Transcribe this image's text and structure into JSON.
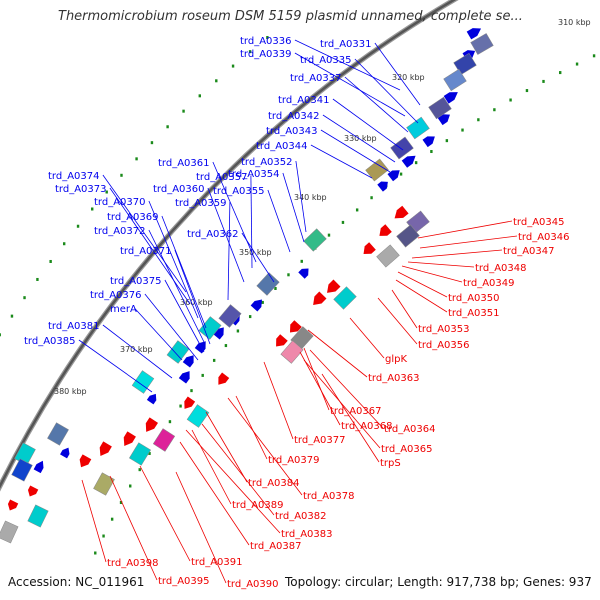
{
  "title": "Thermomicrobium roseum DSM 5159 plasmid unnamed, complete se...",
  "footer": {
    "accession": "Accession: NC_011961",
    "topology": "Topology: circular; Length: 917,738 bp; Genes: 937"
  },
  "colors": {
    "forward_label": "#0000ee",
    "reverse_label": "#ee0000",
    "backbone": "#666666",
    "gc_dots": "#1a8a1a"
  },
  "kbp_ticks": [
    "310 kbp",
    "320 kbp",
    "330 kbp",
    "340 kbp",
    "350 kbp",
    "360 kbp",
    "370 kbp",
    "380 kbp"
  ],
  "forward_genes": [
    "trd_A0336",
    "trd_A0331",
    "trd_A0339",
    "trd_A0335",
    "trd_A0337",
    "trd_A0341",
    "trd_A0342",
    "trd_A0343",
    "trd_A0344",
    "trd_A0352",
    "trd_A0361",
    "trd_A0357",
    "trd_A0354",
    "trd_A0360",
    "trd_A0355",
    "trd_A0359",
    "trd_A0374",
    "trd_A0373",
    "trd_A0370",
    "trd_A0369",
    "trd_A0372",
    "trd_A0362",
    "trd_A0371",
    "trd_A0375",
    "trd_A0376",
    "merA",
    "trd_A0381",
    "trd_A0385"
  ],
  "reverse_genes": [
    "trd_A0345",
    "trd_A0346",
    "trd_A0347",
    "trd_A0348",
    "trd_A0349",
    "trd_A0350",
    "trd_A0351",
    "trd_A0353",
    "trd_A0356",
    "glpK",
    "trd_A0363",
    "trd_A0367",
    "trd_A0364",
    "trd_A0368",
    "trd_A0365",
    "trd_A0377",
    "trpS",
    "trd_A0379",
    "trd_A0378",
    "trd_A0384",
    "trd_A0382",
    "trd_A0389",
    "trd_A0383",
    "trd_A0387",
    "trd_A0391",
    "trd_A0398",
    "trd_A0395",
    "trd_A0390"
  ]
}
